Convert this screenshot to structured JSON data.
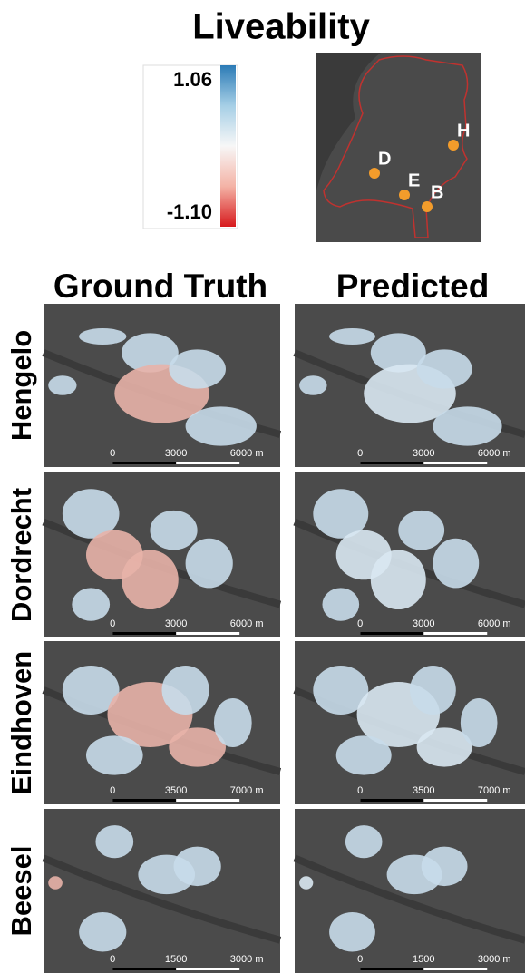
{
  "title": "Liveability",
  "colorbar": {
    "max_label": "1.06",
    "min_label": "-1.10"
  },
  "overview": {
    "markers": [
      "H",
      "D",
      "E",
      "B"
    ]
  },
  "columns": [
    "Ground Truth",
    "Predicted"
  ],
  "rows": [
    {
      "name": "Hengelo",
      "scale": [
        "0",
        "3000",
        "6000 m"
      ]
    },
    {
      "name": "Dordrecht",
      "scale": [
        "0",
        "3000",
        "6000 m"
      ]
    },
    {
      "name": "Eindhoven",
      "scale": [
        "0",
        "3500",
        "7000 m"
      ]
    },
    {
      "name": "Beesel",
      "scale": [
        "0",
        "1500",
        "3000 m"
      ]
    }
  ]
}
